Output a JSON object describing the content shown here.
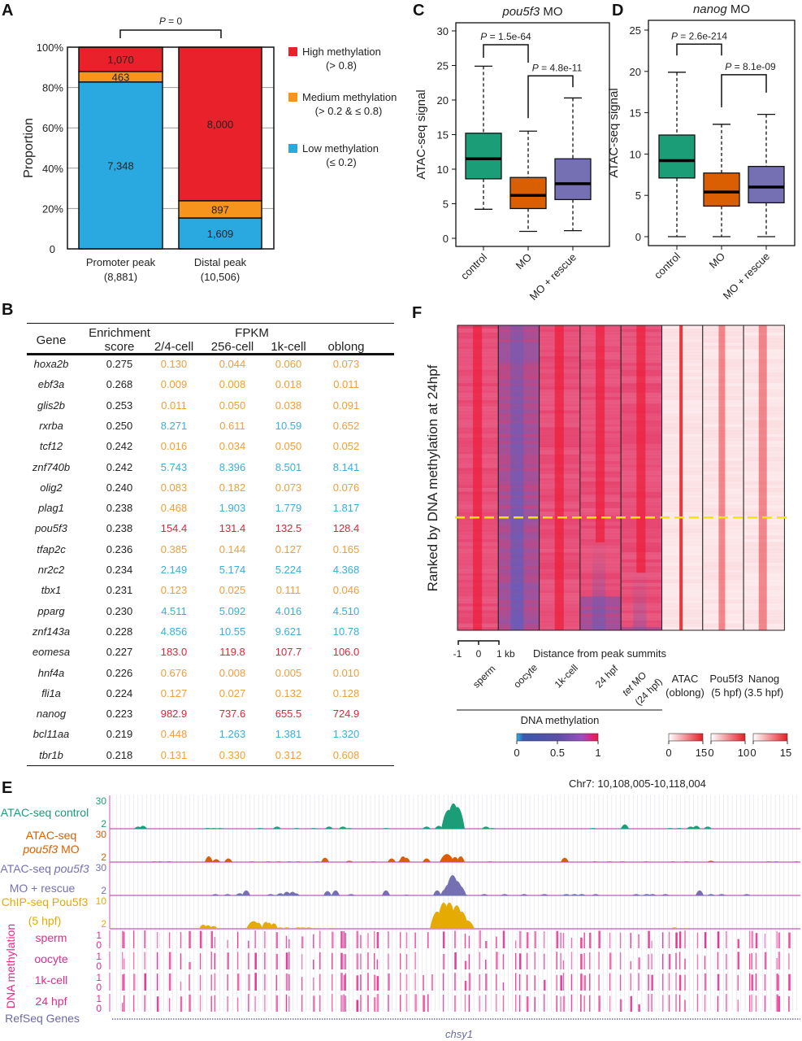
{
  "panels": {
    "A": "A",
    "B": "B",
    "C": "C",
    "D": "D",
    "E": "E",
    "F": "F"
  },
  "colors": {
    "high": "#e8212b",
    "medium": "#f7941d",
    "low": "#29a9e0",
    "control": "#1b9e77",
    "mo": "#d95f02",
    "rescue": "#7570b3",
    "chip": "#e6ab02",
    "methyl": "#e7298a",
    "refseq": "#6a6aa8",
    "fpkm_low": "#f19e38",
    "fpkm_mid": "#3aaed8",
    "fpkm_high": "#e0243a"
  },
  "chart_data": [
    {
      "id": "A",
      "type": "bar",
      "stacked": true,
      "ylabel": "Proportion",
      "yticks": [
        "0",
        "20%",
        "40%",
        "60%",
        "80%",
        "100%"
      ],
      "ylim": [
        0,
        1
      ],
      "pvalue_label": "P = 0",
      "categories": [
        "Promoter peak",
        "Distal peak"
      ],
      "category_totals": [
        "(8,881)",
        "(10,506)"
      ],
      "series": [
        {
          "name": "Low methylation",
          "range": "(≤ 0.2)",
          "values": [
            7348,
            1609
          ],
          "labels": [
            "7,348",
            "1,609"
          ]
        },
        {
          "name": "Medium methylation",
          "range": "(> 0.2 & ≤ 0.8)",
          "values": [
            463,
            897
          ],
          "labels": [
            "463",
            "897"
          ]
        },
        {
          "name": "High methylation",
          "range": "(> 0.8)",
          "values": [
            1070,
            8000
          ],
          "labels": [
            "1,070",
            "8,000"
          ]
        }
      ],
      "legend_order": [
        "High methylation",
        "Medium methylation",
        "Low methylation"
      ],
      "legend_position": "right"
    },
    {
      "id": "C",
      "type": "box",
      "title_italic": "pou5f3",
      "title_rest": " MO",
      "ylabel": "ATAC-seq signal",
      "ylim": [
        0,
        30
      ],
      "yticks": [
        0,
        5,
        10,
        15,
        20,
        25,
        30
      ],
      "categories": [
        "control",
        "MO",
        "MO + rescue"
      ],
      "boxes": [
        {
          "min": 4.2,
          "q1": 8.6,
          "median": 11.5,
          "q3": 15.2,
          "max": 24.9
        },
        {
          "min": 1.0,
          "q1": 4.3,
          "median": 6.2,
          "q3": 8.8,
          "max": 15.5
        },
        {
          "min": 1.1,
          "q1": 5.6,
          "median": 7.9,
          "q3": 11.5,
          "max": 20.3
        }
      ],
      "comparisons": [
        {
          "label": "P = 1.5e-64",
          "pair": [
            0,
            1
          ],
          "y": 28
        },
        {
          "label": "P = 4.8e-11",
          "pair": [
            1,
            2
          ],
          "y": 23.5
        }
      ]
    },
    {
      "id": "D",
      "type": "box",
      "title_italic": "nanog",
      "title_rest": " MO",
      "ylabel": "ATAC-seq signal",
      "ylim": [
        0,
        25
      ],
      "yticks": [
        0,
        5,
        10,
        15,
        20,
        25
      ],
      "categories": [
        "control",
        "MO",
        "MO + rescue"
      ],
      "boxes": [
        {
          "min": 0,
          "q1": 7.1,
          "median": 9.2,
          "q3": 12.3,
          "max": 19.9
        },
        {
          "min": 0,
          "q1": 3.7,
          "median": 5.4,
          "q3": 7.7,
          "max": 13.6
        },
        {
          "min": 0,
          "q1": 4.1,
          "median": 6.0,
          "q3": 8.5,
          "max": 14.8
        }
      ],
      "comparisons": [
        {
          "label": "P = 2.6e-214",
          "pair": [
            0,
            1
          ],
          "y": 23.3
        },
        {
          "label": "P = 8.1e-09",
          "pair": [
            1,
            2
          ],
          "y": 19.6
        }
      ]
    },
    {
      "id": "F",
      "type": "heatmap",
      "ylabel": "Ranked by DNA methylation at 24hpf",
      "scale_ticks": [
        "-1",
        "0",
        "1 kb"
      ],
      "xlabel": "Distance from peak summits",
      "columns": [
        {
          "label": "sperm",
          "group": "methyl"
        },
        {
          "label": "oocyte",
          "group": "methyl"
        },
        {
          "label": "1k-cell",
          "group": "methyl"
        },
        {
          "label": "24 hpf",
          "group": "methyl"
        },
        {
          "label_italic": "tet",
          "label": " MO",
          "label2": "(24 hpf)",
          "group": "methyl"
        },
        {
          "label": "ATAC",
          "label2": "(oblong)",
          "group": "signal"
        },
        {
          "label": "Pou5f3",
          "label2": "(5 hpf)",
          "group": "signal"
        },
        {
          "label": "Nanog",
          "label2": "(3.5 hpf)",
          "group": "signal"
        }
      ],
      "group_label": "DNA methylation",
      "divider_fraction": 0.63,
      "colorbars": [
        {
          "name": "DNA methylation",
          "ticks": [
            "0",
            "0.5",
            "1"
          ]
        },
        {
          "name": "ATAC",
          "ticks": [
            "0",
            "15"
          ]
        },
        {
          "name": "Pou5f3",
          "ticks": [
            "0",
            "10"
          ]
        },
        {
          "name": "Nanog",
          "ticks": [
            "0",
            "15"
          ]
        }
      ]
    },
    {
      "id": "E",
      "type": "genome-tracks",
      "locus": "Chr7: 10,108,005-10,118,004",
      "tracks": [
        {
          "name": "ATAC-seq control",
          "max": "30",
          "min": "2",
          "color_key": "control"
        },
        {
          "name": "ATAC-seq",
          "name2_italic": "pou5f3",
          "name2": " MO",
          "max": "30",
          "min": "2",
          "color_key": "mo"
        },
        {
          "name": "ATAC-seq ",
          "name_italic": "pou5f3",
          "name2": "MO + rescue",
          "max": "30",
          "min": "2",
          "color_key": "rescue"
        },
        {
          "name": "ChIP-seq Pou5f3",
          "name2": "(5 hpf)",
          "max": "10",
          "min": "2",
          "color_key": "chip"
        }
      ],
      "methyl_group_label": "DNA methylation",
      "methyl_tracks": [
        {
          "name": "sperm",
          "max": "1",
          "min": "0"
        },
        {
          "name": "oocyte",
          "max": "1",
          "min": "0"
        },
        {
          "name": "1k-cell",
          "max": "1",
          "min": "0"
        },
        {
          "name": "24 hpf",
          "max": "1",
          "min": "0"
        }
      ],
      "refseq_label": "RefSeq Genes",
      "gene": "chsy1"
    }
  ],
  "table": {
    "headers": {
      "gene": "Gene",
      "enrichment1": "Enrichment",
      "enrichment2": "score",
      "fpkm": "FPKM",
      "stages": [
        "2/4-cell",
        "256-cell",
        "1k-cell",
        "oblong"
      ]
    },
    "rows": [
      {
        "gene": "hoxa2b",
        "score": "0.275",
        "fpkm": [
          "0.130",
          "0.044",
          "0.060",
          "0.073"
        ],
        "cls": [
          "l",
          "l",
          "l",
          "l"
        ]
      },
      {
        "gene": "ebf3a",
        "score": "0.268",
        "fpkm": [
          "0.009",
          "0.008",
          "0.018",
          "0.011"
        ],
        "cls": [
          "l",
          "l",
          "l",
          "l"
        ]
      },
      {
        "gene": "glis2b",
        "score": "0.253",
        "fpkm": [
          "0.011",
          "0.050",
          "0.038",
          "0.091"
        ],
        "cls": [
          "l",
          "l",
          "l",
          "l"
        ]
      },
      {
        "gene": "rxrba",
        "score": "0.250",
        "fpkm": [
          "8.271",
          "0.611",
          "10.59",
          "0.652"
        ],
        "cls": [
          "m",
          "l",
          "m",
          "l"
        ]
      },
      {
        "gene": "tcf12",
        "score": "0.242",
        "fpkm": [
          "0.016",
          "0.034",
          "0.050",
          "0.052"
        ],
        "cls": [
          "l",
          "l",
          "l",
          "l"
        ]
      },
      {
        "gene": "znf740b",
        "score": "0.242",
        "fpkm": [
          "5.743",
          "8.396",
          "8.501",
          "8.141"
        ],
        "cls": [
          "m",
          "m",
          "m",
          "m"
        ]
      },
      {
        "gene": "olig2",
        "score": "0.240",
        "fpkm": [
          "0.083",
          "0.182",
          "0.073",
          "0.076"
        ],
        "cls": [
          "l",
          "l",
          "l",
          "l"
        ]
      },
      {
        "gene": "plag1",
        "score": "0.238",
        "fpkm": [
          "0.468",
          "1.903",
          "1.779",
          "1.817"
        ],
        "cls": [
          "l",
          "m",
          "m",
          "m"
        ]
      },
      {
        "gene": "pou5f3",
        "score": "0.238",
        "fpkm": [
          "154.4",
          "131.4",
          "132.5",
          "128.4"
        ],
        "cls": [
          "h",
          "h",
          "h",
          "h"
        ]
      },
      {
        "gene": "tfap2c",
        "score": "0.236",
        "fpkm": [
          "0.385",
          "0.144",
          "0.127",
          "0.165"
        ],
        "cls": [
          "l",
          "l",
          "l",
          "l"
        ]
      },
      {
        "gene": "nr2c2",
        "score": "0.234",
        "fpkm": [
          "2.149",
          "5.174",
          "5.224",
          "4.368"
        ],
        "cls": [
          "m",
          "m",
          "m",
          "m"
        ]
      },
      {
        "gene": "tbx1",
        "score": "0.231",
        "fpkm": [
          "0.123",
          "0.025",
          "0.111",
          "0.046"
        ],
        "cls": [
          "l",
          "l",
          "l",
          "l"
        ]
      },
      {
        "gene": "pparg",
        "score": "0.230",
        "fpkm": [
          "4.511",
          "5.092",
          "4.016",
          "4.510"
        ],
        "cls": [
          "m",
          "m",
          "m",
          "m"
        ]
      },
      {
        "gene": "znf143a",
        "score": "0.228",
        "fpkm": [
          "4.856",
          "10.55",
          "9.621",
          "10.78"
        ],
        "cls": [
          "m",
          "m",
          "m",
          "m"
        ]
      },
      {
        "gene": "eomesa",
        "score": "0.227",
        "fpkm": [
          "183.0",
          "119.8",
          "107.7",
          "106.0"
        ],
        "cls": [
          "h",
          "h",
          "h",
          "h"
        ]
      },
      {
        "gene": "hnf4a",
        "score": "0.226",
        "fpkm": [
          "0.676",
          "0.008",
          "0.005",
          "0.010"
        ],
        "cls": [
          "l",
          "l",
          "l",
          "l"
        ]
      },
      {
        "gene": "fli1a",
        "score": "0.224",
        "fpkm": [
          "0.127",
          "0.027",
          "0.132",
          "0.128"
        ],
        "cls": [
          "l",
          "l",
          "l",
          "l"
        ]
      },
      {
        "gene": "nanog",
        "score": "0.223",
        "fpkm": [
          "982.9",
          "737.6",
          "655.5",
          "724.9"
        ],
        "cls": [
          "h",
          "h",
          "h",
          "h"
        ]
      },
      {
        "gene": "bcl11aa",
        "score": "0.219",
        "fpkm": [
          "0.448",
          "1.263",
          "1.381",
          "1.320"
        ],
        "cls": [
          "l",
          "m",
          "m",
          "m"
        ]
      },
      {
        "gene": "tbr1b",
        "score": "0.218",
        "fpkm": [
          "0.131",
          "0.330",
          "0.312",
          "0.608"
        ],
        "cls": [
          "l",
          "l",
          "l",
          "l"
        ]
      }
    ]
  }
}
